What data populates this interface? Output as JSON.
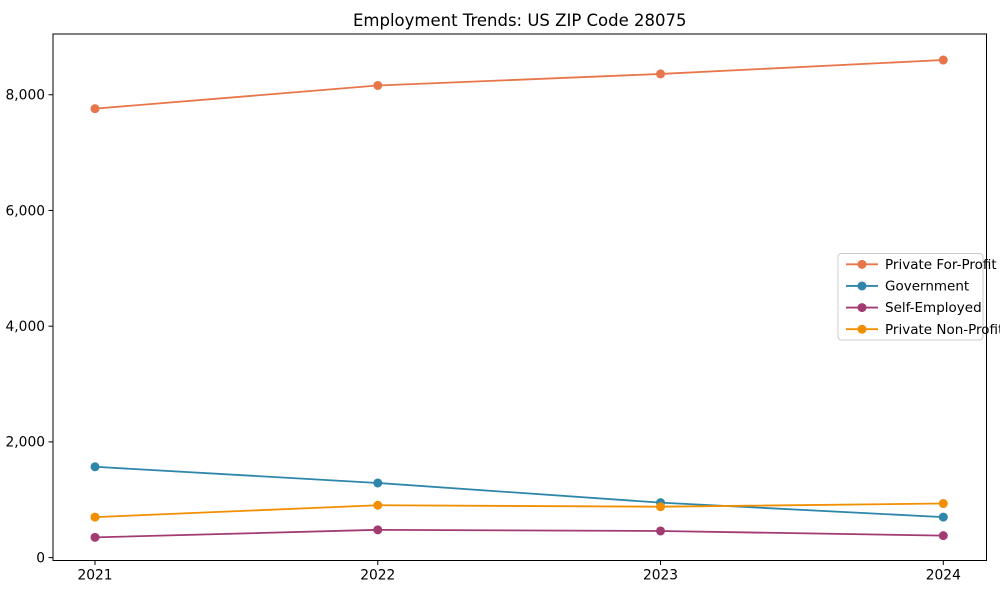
{
  "figure": {
    "background": "#ffffff",
    "axis_color": "#000000",
    "legend_border_color": "#cccccc",
    "legend_background": "#ffffff"
  },
  "chart_data": {
    "type": "line",
    "title": "Employment Trends: US ZIP Code 28075",
    "xlabel": "",
    "ylabel": "",
    "categories": [
      "2021",
      "2022",
      "2023",
      "2024"
    ],
    "series": [
      {
        "name": "Private For-Profit",
        "color": "#E8764B",
        "values": [
          7760,
          8160,
          8360,
          8600
        ]
      },
      {
        "name": "Government",
        "color": "#2E86AB",
        "values": [
          1570,
          1290,
          950,
          700
        ]
      },
      {
        "name": "Self-Employed",
        "color": "#A23B72",
        "values": [
          350,
          480,
          460,
          380
        ]
      },
      {
        "name": "Private Non-Profit",
        "color": "#F18F01",
        "values": [
          700,
          905,
          880,
          935
        ]
      }
    ],
    "ylim": [
      -50,
      9050
    ],
    "yticks": [
      0,
      2000,
      4000,
      6000,
      8000
    ],
    "ytick_labels": [
      "0",
      "2,000",
      "4,000",
      "6,000",
      "8,000"
    ],
    "grid": false,
    "marker": "circle",
    "legend_position": "middle-right"
  }
}
